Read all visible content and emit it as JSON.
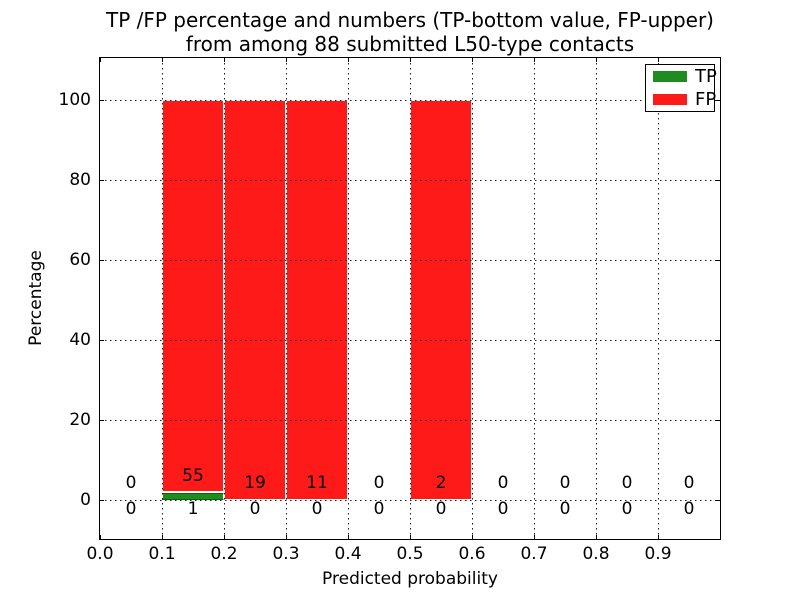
{
  "chart_data": {
    "type": "bar",
    "stacked": true,
    "title_lines": [
      "TP /FP percentage and numbers (TP-bottom value, FP-upper)",
      "from among 88 submitted L50-type contacts"
    ],
    "xlabel": "Predicted probability",
    "ylabel": "Percentage",
    "xlim": [
      0.0,
      1.0
    ],
    "ylim": [
      -10,
      110
    ],
    "x_ticks": [
      "0.0",
      "0.1",
      "0.2",
      "0.3",
      "0.4",
      "0.5",
      "0.6",
      "0.7",
      "0.8",
      "0.9"
    ],
    "y_ticks": [
      "0",
      "20",
      "40",
      "60",
      "80",
      "100"
    ],
    "grid": "dotted, drawn above bars",
    "legend_position": "upper right",
    "bin_edges": [
      0.0,
      0.1,
      0.2,
      0.3,
      0.4,
      0.5,
      0.6,
      0.7,
      0.8,
      0.9,
      1.0
    ],
    "total_contacts": 88,
    "series": [
      {
        "name": "TP",
        "color": "#1f8c1f",
        "edge_color": "#0a640a",
        "counts": [
          0,
          1,
          0,
          0,
          0,
          0,
          0,
          0,
          0,
          0
        ],
        "percentages": [
          0,
          1.8,
          0,
          0,
          0,
          0,
          0,
          0,
          0,
          0
        ]
      },
      {
        "name": "FP",
        "color": "#ff1a1a",
        "counts": [
          0,
          55,
          19,
          11,
          0,
          2,
          0,
          0,
          0,
          0
        ],
        "percentages": [
          0,
          98.2,
          100,
          100,
          0,
          100,
          0,
          0,
          0,
          0
        ]
      }
    ],
    "legend": [
      {
        "label": "TP",
        "color": "#1f8c1f"
      },
      {
        "label": "FP",
        "color": "#ff1a1a"
      }
    ]
  }
}
